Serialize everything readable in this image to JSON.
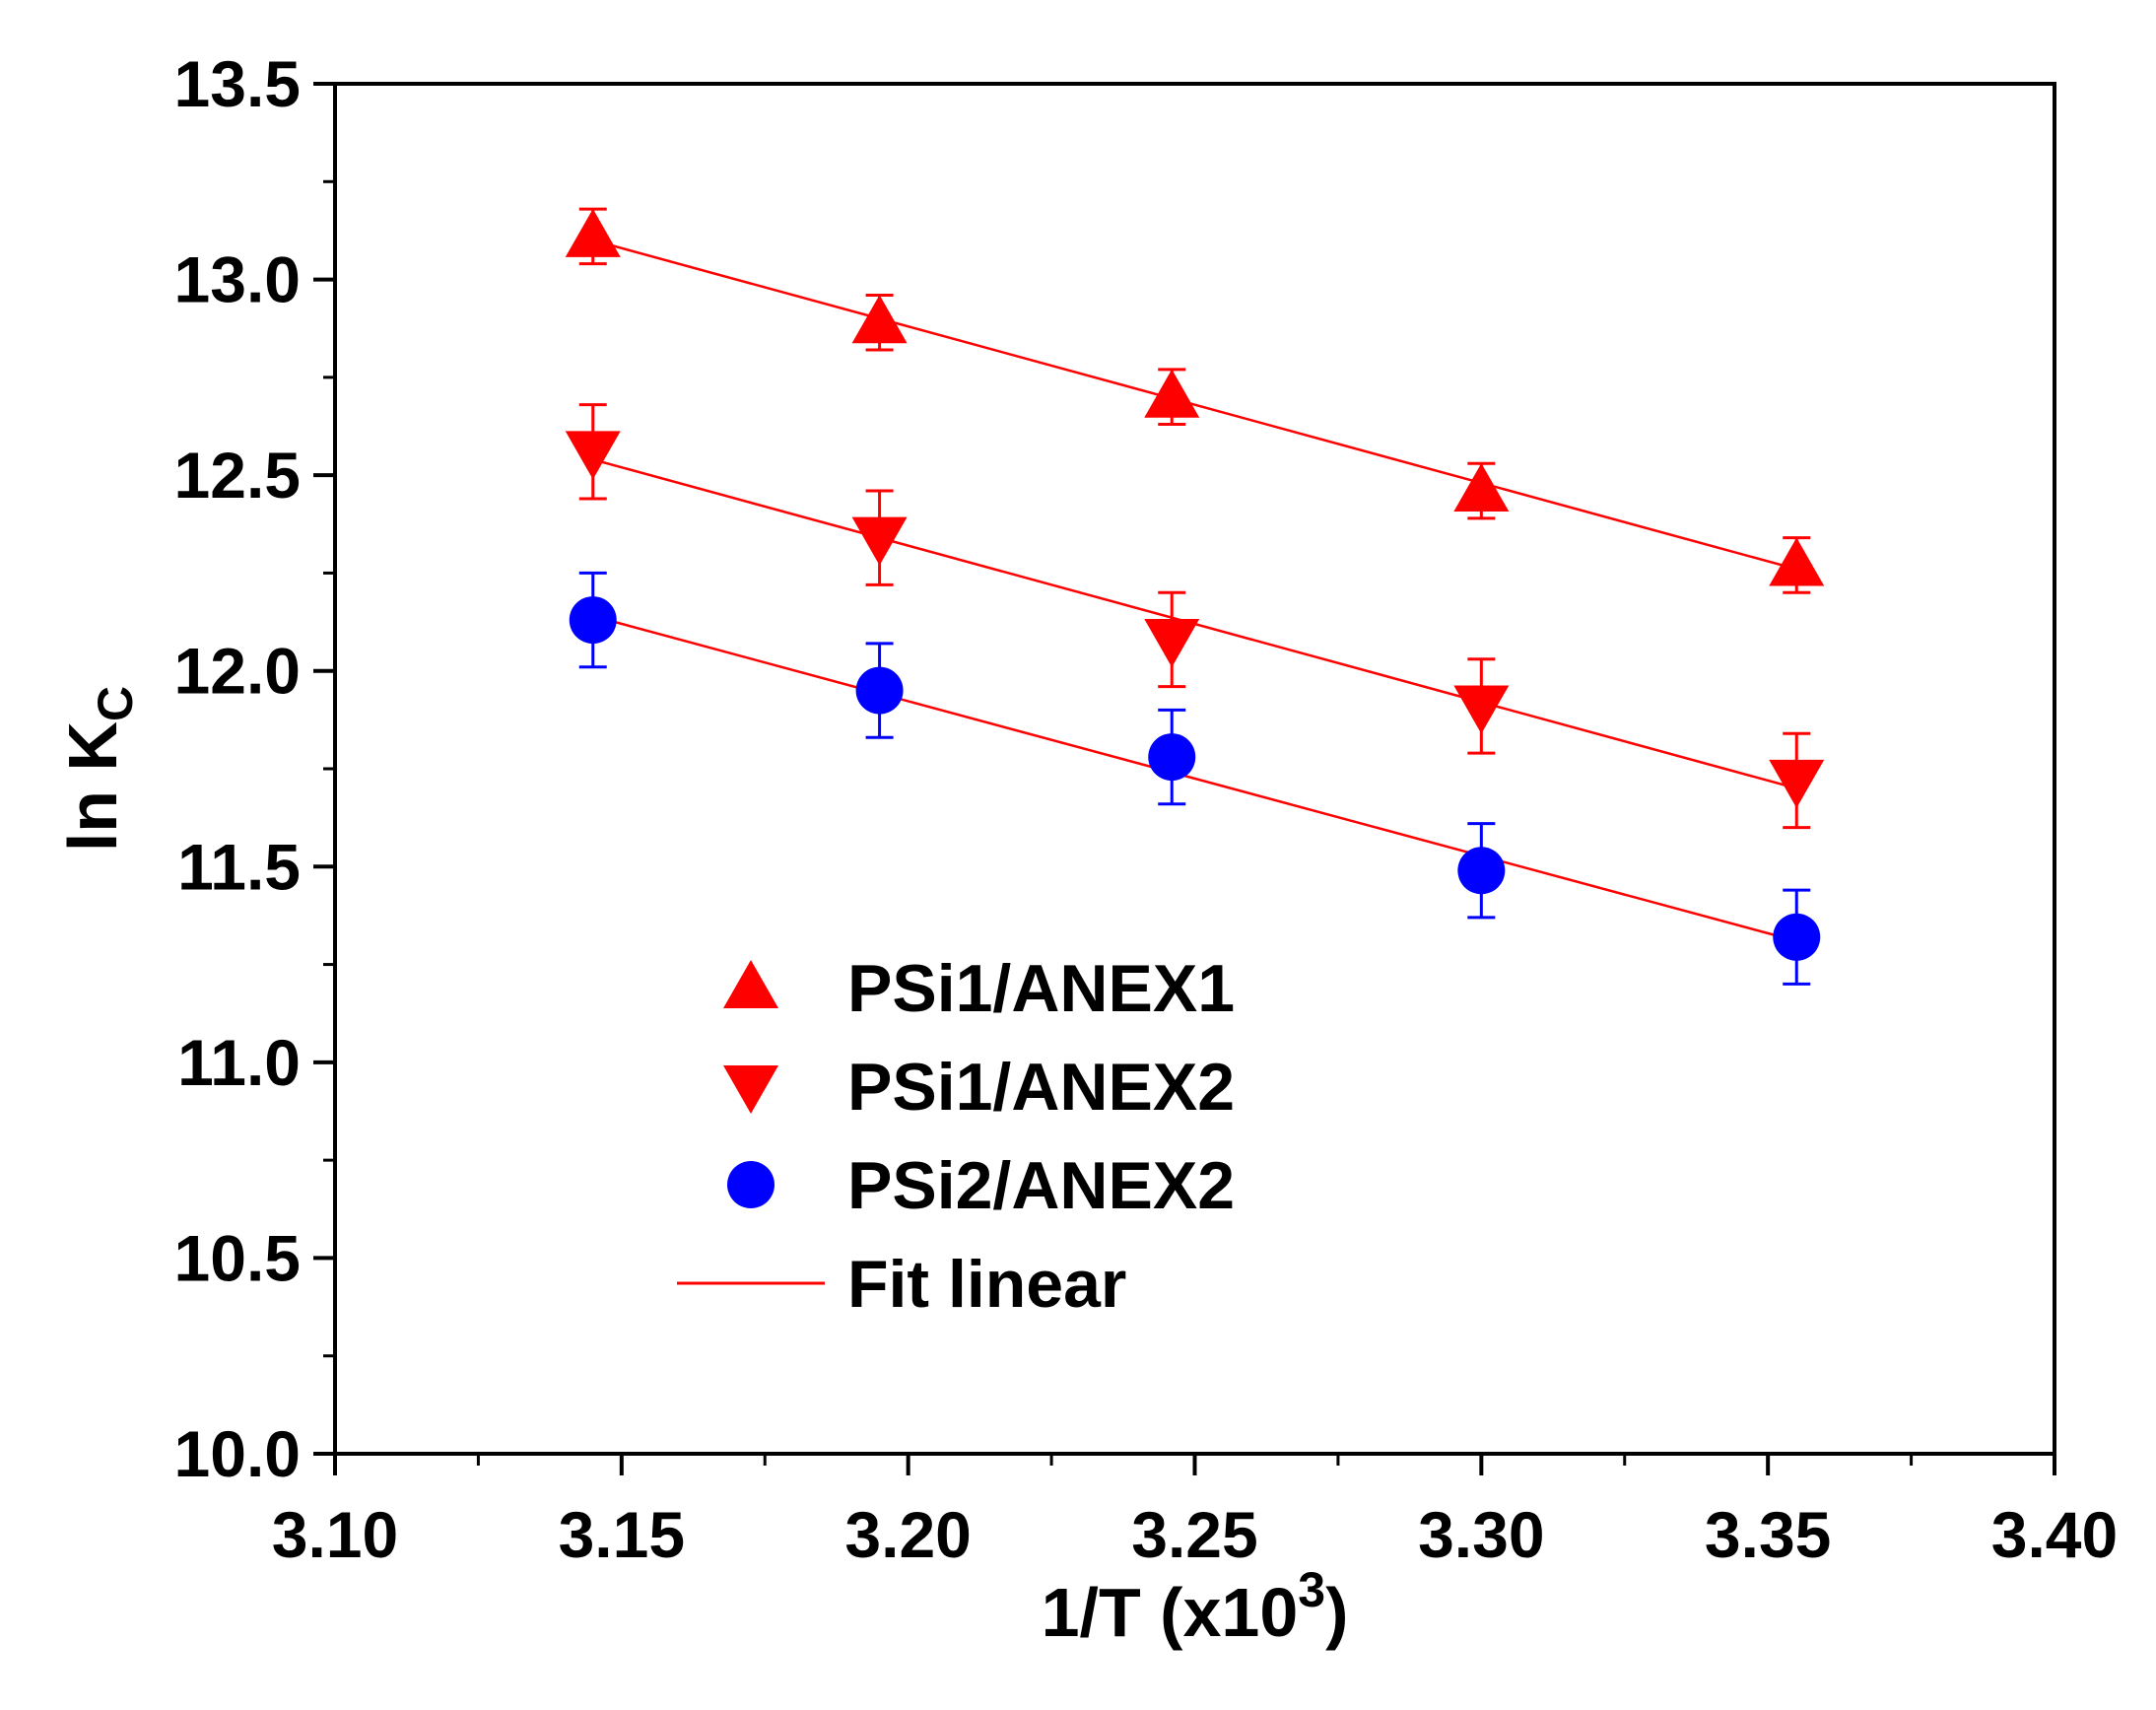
{
  "chart_data": {
    "type": "scatter",
    "xlabel": "1/T (x10",
    "xlabel_sup": "3",
    "xlabel_close": ")",
    "ylabel": "ln K",
    "ylabel_sub": "C",
    "xlim": [
      3.1,
      3.4
    ],
    "ylim": [
      10.0,
      13.5
    ],
    "x_ticks": [
      3.1,
      3.15,
      3.2,
      3.25,
      3.3,
      3.35,
      3.4
    ],
    "x_tick_labels": [
      "3.10",
      "3.15",
      "3.20",
      "3.25",
      "3.30",
      "3.35",
      "3.40"
    ],
    "y_ticks": [
      10.0,
      10.5,
      11.0,
      11.5,
      12.0,
      12.5,
      13.0,
      13.5
    ],
    "y_tick_labels": [
      "10.0",
      "10.5",
      "11.0",
      "11.5",
      "12.0",
      "12.5",
      "13.0",
      "13.5"
    ],
    "grid": false,
    "legend_position": "lower-center",
    "series": [
      {
        "name": "PSi1/ANEX1",
        "marker": "triangle-up",
        "color": "#ff0000",
        "x": [
          3.145,
          3.195,
          3.246,
          3.3,
          3.355
        ],
        "y": [
          13.11,
          12.89,
          12.7,
          12.46,
          12.27
        ],
        "err": [
          0.07,
          0.07,
          0.07,
          0.07,
          0.07
        ]
      },
      {
        "name": "PSi1/ANEX2",
        "marker": "triangle-down",
        "color": "#ff0000",
        "x": [
          3.145,
          3.195,
          3.246,
          3.3,
          3.355
        ],
        "y": [
          12.56,
          12.34,
          12.08,
          11.91,
          11.72
        ],
        "err": [
          0.12,
          0.12,
          0.12,
          0.12,
          0.12
        ]
      },
      {
        "name": "PSi2/ANEX2",
        "marker": "circle",
        "color": "#0000ff",
        "x": [
          3.145,
          3.195,
          3.246,
          3.3,
          3.355
        ],
        "y": [
          12.13,
          11.95,
          11.78,
          11.49,
          11.32
        ],
        "err": [
          0.12,
          0.12,
          0.12,
          0.12,
          0.12
        ]
      }
    ],
    "fits": [
      {
        "name": "Fit linear",
        "color": "#ff0000",
        "x": [
          3.145,
          3.355
        ],
        "y": [
          13.1,
          12.26
        ]
      },
      {
        "name": "Fit linear",
        "color": "#ff0000",
        "x": [
          3.145,
          3.355
        ],
        "y": [
          12.54,
          11.7
        ]
      },
      {
        "name": "Fit linear",
        "color": "#ff0000",
        "x": [
          3.145,
          3.355
        ],
        "y": [
          12.14,
          11.31
        ]
      }
    ],
    "legend": [
      {
        "label": "PSi1/ANEX1",
        "marker": "triangle-up",
        "color": "#ff0000"
      },
      {
        "label": "PSi1/ANEX2",
        "marker": "triangle-down",
        "color": "#ff0000"
      },
      {
        "label": "PSi2/ANEX2",
        "marker": "circle",
        "color": "#0000ff"
      },
      {
        "label": "Fit linear",
        "marker": "line",
        "color": "#ff0000"
      }
    ]
  }
}
